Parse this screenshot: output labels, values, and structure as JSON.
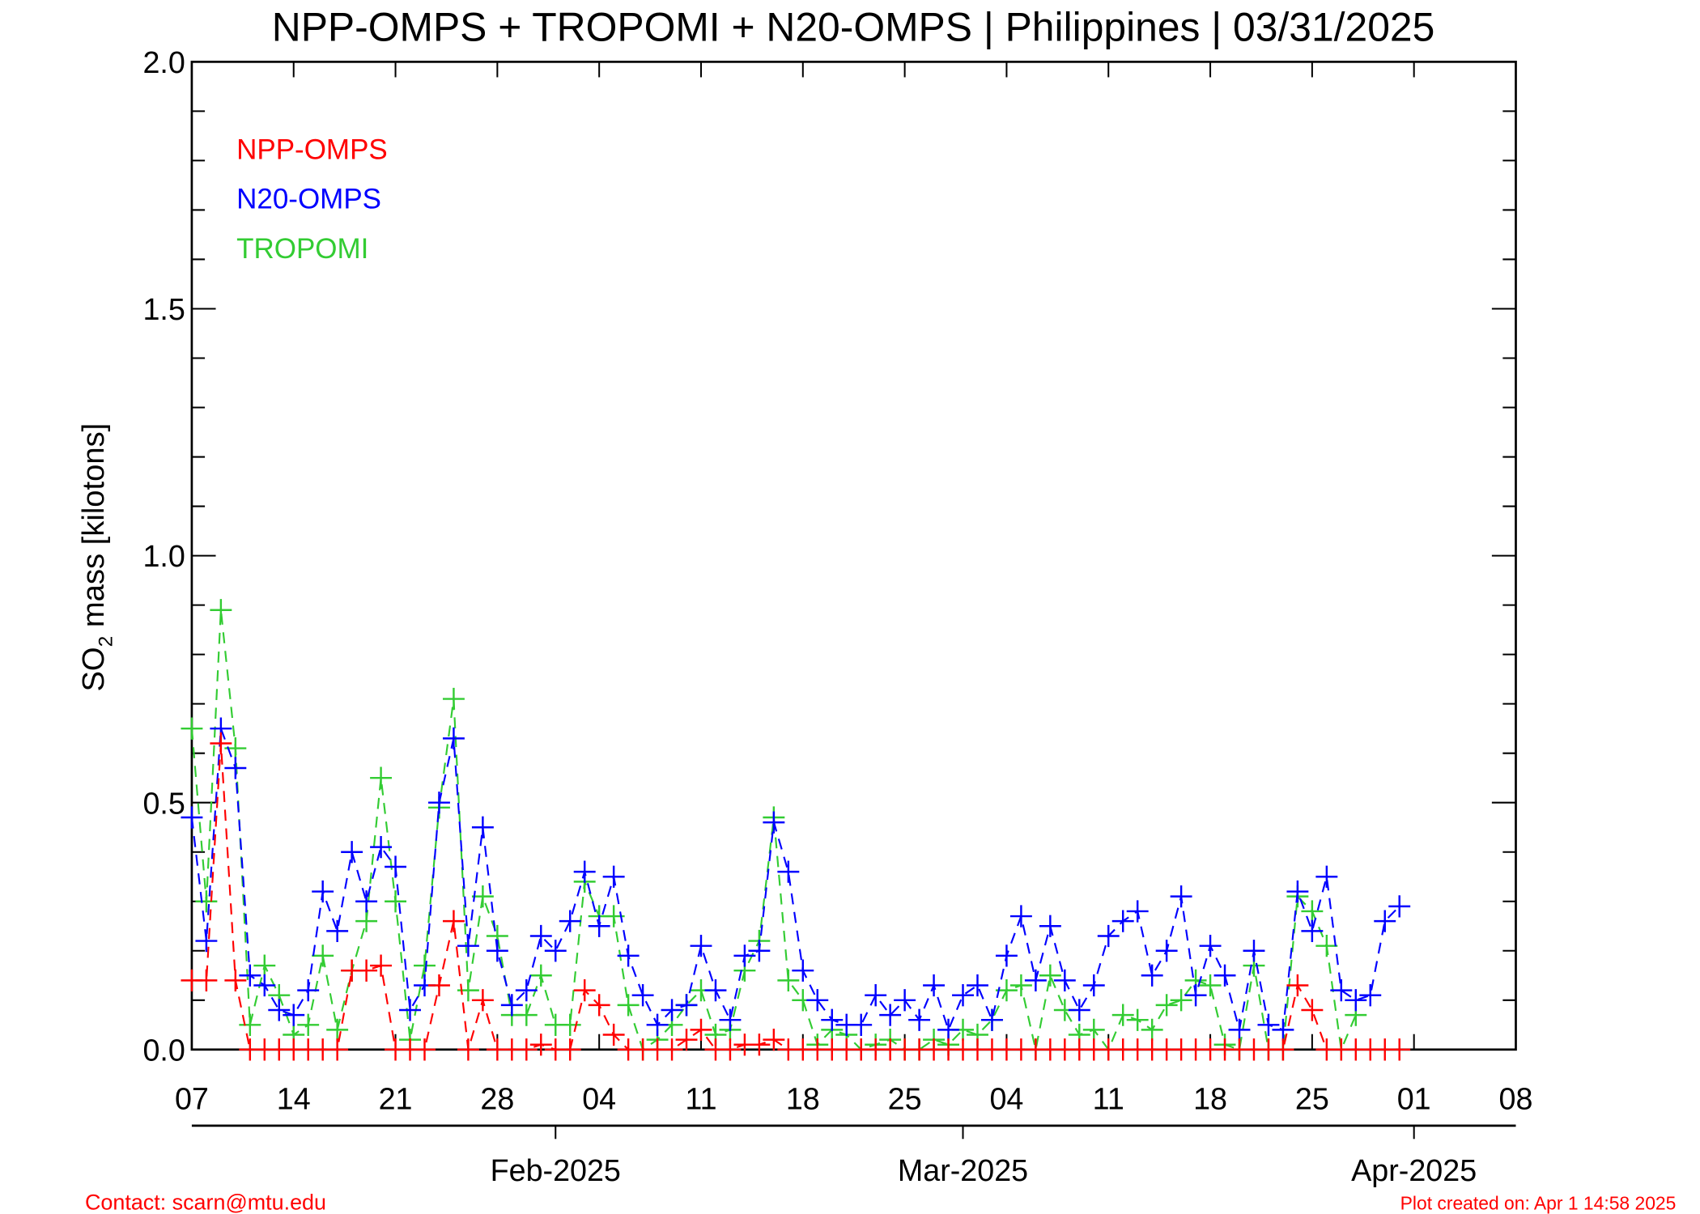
{
  "chart_data": {
    "type": "line",
    "title": "NPP-OMPS + TROPOMI + N20-OMPS | Philippines | 03/31/2025",
    "ylabel": "SO",
    "ylabel_sub": "2",
    "ylabel_rest": " mass [kilotons]",
    "ylim": [
      0,
      2.0
    ],
    "xlim": [
      "2025-01-07",
      "2025-04-08"
    ],
    "yticks": [
      "0.0",
      "0.5",
      "1.0",
      "1.5",
      "2.0"
    ],
    "xticks": [
      "07",
      "14",
      "21",
      "28",
      "04",
      "11",
      "18",
      "25",
      "04",
      "11",
      "18",
      "25",
      "01",
      "08"
    ],
    "month_labels": [
      "Feb-2025",
      "Mar-2025",
      "Apr-2025"
    ],
    "grid": false,
    "legend_placement": "top-left",
    "marker": "plus",
    "line_style": "dashed",
    "series": [
      {
        "name": "NPP-OMPS",
        "color": "#ff0000",
        "values": [
          0.14,
          0.14,
          0.62,
          0.14,
          0,
          0,
          0,
          0,
          0,
          0,
          0,
          0.16,
          0.16,
          0.17,
          0,
          0,
          0,
          0.13,
          0.26,
          0,
          0.1,
          0,
          0,
          0,
          0.01,
          0,
          0,
          0.12,
          0.09,
          0.03,
          0,
          0,
          0,
          0,
          0.02,
          0.04,
          0,
          0,
          0.01,
          0.01,
          0.02,
          0,
          0,
          0,
          0,
          0,
          0,
          0,
          0,
          0,
          0,
          0,
          0,
          0,
          0,
          0,
          0,
          0,
          0,
          0,
          0,
          0,
          0,
          0,
          0,
          0,
          0,
          0,
          0,
          0,
          0,
          0,
          0,
          0,
          0,
          0,
          0.13,
          0.08,
          0,
          0,
          0,
          0,
          0,
          0
        ]
      },
      {
        "name": "N20-OMPS",
        "color": "#0000ff",
        "values": [
          0.47,
          0.22,
          0.65,
          0.57,
          0.15,
          0.13,
          0.08,
          0.07,
          0.12,
          0.32,
          0.24,
          0.4,
          0.3,
          0.41,
          0.37,
          0.08,
          0.13,
          0.5,
          0.63,
          0.21,
          0.45,
          0.2,
          0.09,
          0.12,
          0.23,
          0.2,
          0.26,
          0.36,
          0.25,
          0.35,
          0.19,
          0.11,
          0.05,
          0.08,
          0.09,
          0.21,
          0.12,
          0.06,
          0.19,
          0.2,
          0.46,
          0.36,
          0.16,
          0.1,
          0.06,
          0.05,
          0.05,
          0.11,
          0.07,
          0.1,
          0.06,
          0.13,
          0.04,
          0.11,
          0.13,
          0.06,
          0.19,
          0.27,
          0.14,
          0.25,
          0.14,
          0.08,
          0.13,
          0.23,
          0.26,
          0.28,
          0.15,
          0.2,
          0.31,
          0.11,
          0.21,
          0.15,
          0.04,
          0.2,
          0.05,
          0.04,
          0.32,
          0.24,
          0.35,
          0.12,
          0.1,
          0.11,
          0.26,
          0.29
        ]
      },
      {
        "name": "TROPOMI",
        "color": "#33cc33",
        "values": [
          0.65,
          0.3,
          0.89,
          0.61,
          0.05,
          0.17,
          0.11,
          0.03,
          0.05,
          0.19,
          0.04,
          0.16,
          0.26,
          0.55,
          0.3,
          0.02,
          0.17,
          0.49,
          0.71,
          0.12,
          0.31,
          0.23,
          0.07,
          0.07,
          0.15,
          0.05,
          0.05,
          0.34,
          0.27,
          0.27,
          0.09,
          0,
          0.02,
          0.05,
          0.09,
          0.12,
          0.03,
          0.04,
          0.16,
          0.22,
          0.47,
          0.14,
          0.1,
          0.01,
          0.04,
          0.03,
          0,
          0.01,
          0.02,
          0,
          0,
          0.02,
          0.01,
          0.04,
          0.03,
          0.06,
          0.12,
          0.13,
          0,
          0.15,
          0.08,
          0.03,
          0.04,
          0,
          0.07,
          0.06,
          0.04,
          0.09,
          0.1,
          0.14,
          0.13,
          0.01,
          0,
          0.17,
          0,
          0,
          0.31,
          0.28,
          0.21,
          0,
          0.07,
          null,
          null,
          null
        ]
      }
    ]
  },
  "footer": {
    "contact": "Contact: scarn@mtu.edu",
    "created": "Plot created on: Apr  1 14:58 2025"
  }
}
